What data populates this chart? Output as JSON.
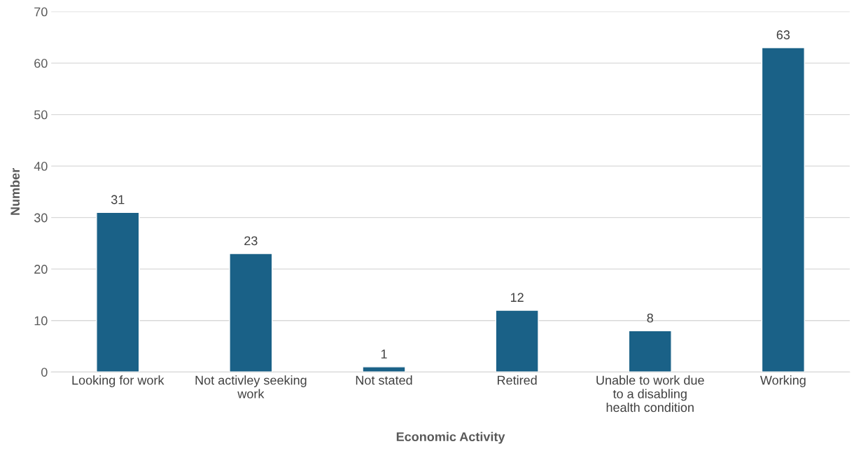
{
  "chart_data": {
    "type": "bar",
    "xlabel": "Economic Activity",
    "ylabel": "Number",
    "categories": [
      "Looking for work",
      "Not activley seeking work",
      "Not stated",
      "Retired",
      "Unable to work due to a disabling health condition",
      "Working"
    ],
    "values": [
      31,
      23,
      1,
      12,
      8,
      63
    ],
    "color": "#1a6187",
    "ylim": [
      0,
      70
    ],
    "yticks": [
      0,
      10,
      20,
      30,
      40,
      50,
      60,
      70
    ],
    "grid": "y",
    "data_labels": true
  }
}
